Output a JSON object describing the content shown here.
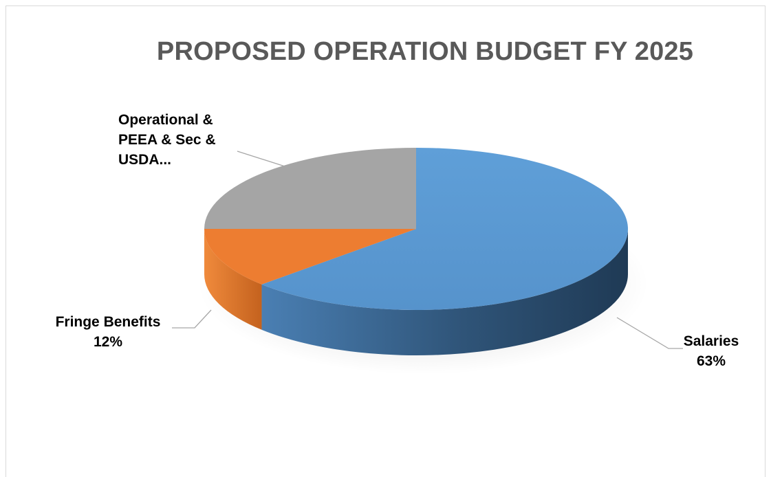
{
  "chart_data": {
    "type": "pie",
    "title": "PROPOSED OPERATION BUDGET FY 2025",
    "slices": [
      {
        "label": "Salaries",
        "value": 63,
        "value_label": "63%",
        "color": "#5b9bd5"
      },
      {
        "label": "Fringe Benefits",
        "value": 12,
        "value_label": "12%",
        "color": "#ed7d31"
      },
      {
        "label": "Operational & PEEA & Sec & USDA...",
        "value": 25,
        "value_label": "",
        "color": "#a5a5a5"
      }
    ],
    "label_lines": {
      "salaries": [
        "Salaries",
        "63%"
      ],
      "fringe": [
        "Fringe Benefits",
        "12%"
      ],
      "operational": [
        "Operational &",
        "PEEA  & Sec &",
        "USDA..."
      ]
    },
    "legend": "none"
  }
}
